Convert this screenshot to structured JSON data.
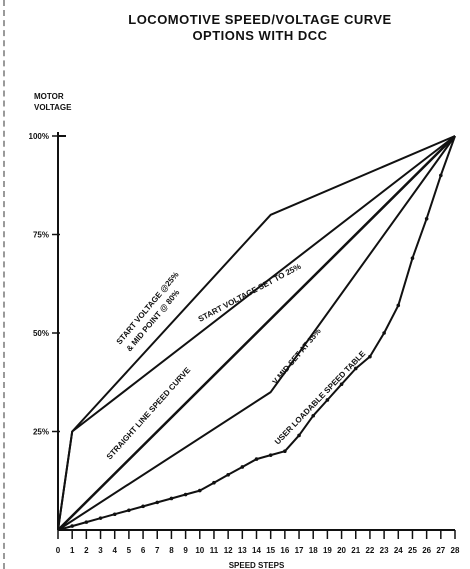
{
  "title_line1": "LOCOMOTIVE SPEED/VOLTAGE CURVE",
  "title_line2": "OPTIONS WITH DCC",
  "chart_data": {
    "type": "line",
    "title": "LOCOMOTIVE SPEED/VOLTAGE CURVE OPTIONS WITH DCC",
    "xlabel": "SPEED STEPS",
    "ylabel_line1": "MOTOR",
    "ylabel_line2": "VOLTAGE",
    "xlim": [
      0,
      28
    ],
    "ylim": [
      0,
      100
    ],
    "x_ticks": [
      0,
      1,
      2,
      3,
      4,
      5,
      6,
      7,
      8,
      9,
      10,
      11,
      12,
      13,
      14,
      15,
      16,
      17,
      18,
      19,
      20,
      21,
      22,
      23,
      24,
      25,
      26,
      27,
      28
    ],
    "y_ticks": [
      {
        "value": 25,
        "label": "25%"
      },
      {
        "value": 50,
        "label": "50%"
      },
      {
        "value": 75,
        "label": "75%"
      },
      {
        "value": 100,
        "label": "100%"
      }
    ],
    "series": [
      {
        "name": "START VOLTAGE @ 25% & MID POINT @ 80%",
        "x": [
          0,
          1,
          15,
          28
        ],
        "y": [
          0,
          25,
          80,
          100
        ]
      },
      {
        "name": "START VOLTAGE SET TO 25%",
        "x": [
          0,
          1,
          28
        ],
        "y": [
          0,
          25,
          100
        ]
      },
      {
        "name": "STRAIGHT LINE SPEED CURVE",
        "x": [
          0,
          28
        ],
        "y": [
          0,
          100
        ]
      },
      {
        "name": "V MID SET AT 35%",
        "x": [
          0,
          15,
          28
        ],
        "y": [
          0,
          35,
          100
        ]
      },
      {
        "name": "USER LOADABLE SPEED TABLE",
        "x": [
          0,
          1,
          2,
          3,
          4,
          5,
          6,
          7,
          8,
          9,
          10,
          11,
          12,
          13,
          14,
          15,
          16,
          17,
          18,
          19,
          20,
          21,
          22,
          23,
          24,
          25,
          26,
          27,
          28
        ],
        "y": [
          0,
          1,
          2,
          3,
          4,
          5,
          6,
          7,
          8,
          9,
          10,
          12,
          14,
          16,
          18,
          19,
          20,
          24,
          29,
          33,
          37,
          41,
          44,
          50,
          57,
          69,
          79,
          90,
          100
        ]
      }
    ],
    "annotations": [
      {
        "text": "START VOLTAGE @25%",
        "series": 0
      },
      {
        "text": "& MID POINT @ 80%",
        "series": 0
      },
      {
        "text": "START VOLTAGE SET TO 25%",
        "series": 1
      },
      {
        "text": "STRAIGHT LINE SPEED CURVE",
        "series": 2
      },
      {
        "text": "V MID SET AT 35%",
        "series": 3
      },
      {
        "text": "USER LOADABLE SPEED TABLE",
        "series": 4
      }
    ],
    "grid": false,
    "legend": "none"
  }
}
